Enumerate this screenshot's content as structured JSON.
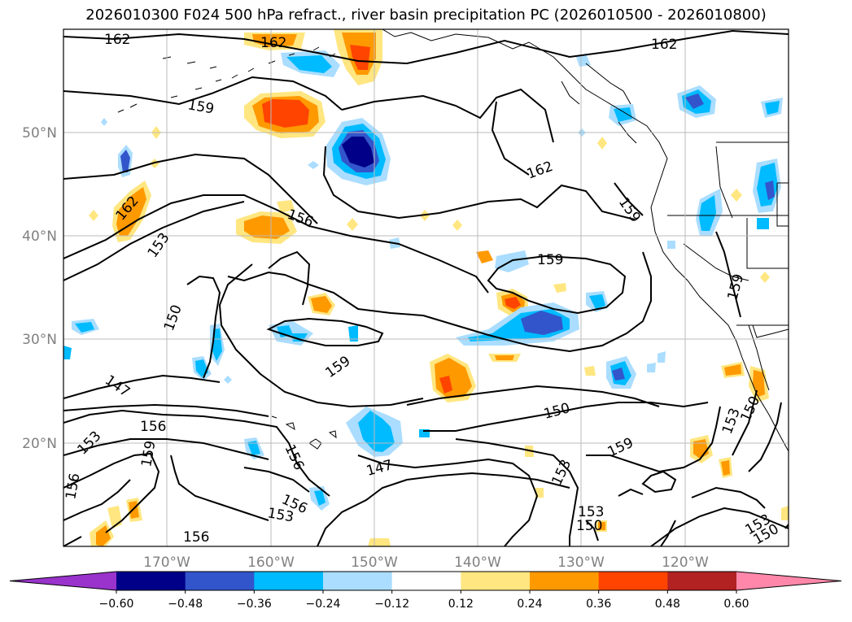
{
  "title": "2026010300 F024 500 hPa refract., river basin precipitation PC (2026010500 - 2026010800)",
  "axes": {
    "lon_labels": [
      "170°W",
      "160°W",
      "150°W",
      "140°W",
      "130°W",
      "120°W"
    ],
    "lat_labels": [
      "50°N",
      "40°N",
      "30°N",
      "20°N"
    ],
    "lon_range": [
      -180,
      -110
    ],
    "lat_range": [
      10,
      60
    ],
    "grid": true
  },
  "contour_labels": [
    "162",
    "162",
    "162",
    "162",
    "162",
    "159",
    "159",
    "159",
    "159",
    "159",
    "159",
    "159",
    "156",
    "156",
    "156",
    "156",
    "156",
    "156",
    "153",
    "153",
    "153",
    "153",
    "153",
    "153",
    "153",
    "150",
    "150",
    "150",
    "150",
    "150",
    "147",
    "147"
  ],
  "colorbar": {
    "ticks": [
      "−0.60",
      "−0.48",
      "−0.36",
      "−0.24",
      "−0.12",
      "0.12",
      "0.24",
      "0.36",
      "0.48",
      "0.60"
    ],
    "colors": [
      "#9933cc",
      "#000088",
      "#3355cc",
      "#00bbff",
      "#aaddff",
      "#ffffff",
      "#ffe680",
      "#ff9900",
      "#ff4400",
      "#b22222",
      "#ff88aa"
    ],
    "extend": "both"
  }
}
